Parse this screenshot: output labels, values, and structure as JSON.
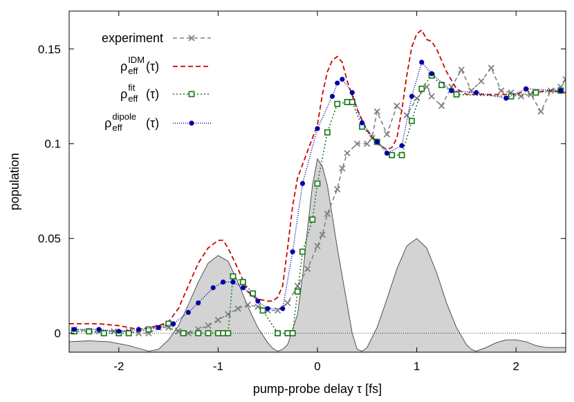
{
  "chart_data": {
    "type": "line",
    "xlabel": "pump-probe delay τ [fs]",
    "ylabel": "population",
    "xlim": [
      -2.5,
      2.5
    ],
    "ylim": [
      -0.01,
      0.17
    ],
    "xticks": [
      -2,
      -1,
      0,
      1,
      2
    ],
    "yticks": [
      0,
      0.05,
      0.1,
      0.15
    ],
    "ytick_labels": [
      "0",
      "0.05",
      "0.1",
      "0.15"
    ],
    "grid": false,
    "zero_line": true,
    "legend_position": "top-left",
    "series": [
      {
        "name": "experiment",
        "legend_main": "experiment",
        "color": "#808080",
        "dash": "6,4",
        "marker": "x",
        "points": [
          [
            -2.45,
            0.002
          ],
          [
            -2.2,
            0.001
          ],
          [
            -2.05,
            0.001
          ],
          [
            -1.9,
            0.001
          ],
          [
            -1.8,
            0.0
          ],
          [
            -1.7,
            0.0
          ],
          [
            -1.6,
            0.003
          ],
          [
            -1.5,
            0.003
          ],
          [
            -1.4,
            0.001
          ],
          [
            -1.3,
            0.0
          ],
          [
            -1.2,
            0.002
          ],
          [
            -1.1,
            0.004
          ],
          [
            -1.0,
            0.007
          ],
          [
            -0.9,
            0.01
          ],
          [
            -0.8,
            0.013
          ],
          [
            -0.7,
            0.015
          ],
          [
            -0.6,
            0.014
          ],
          [
            -0.5,
            0.012
          ],
          [
            -0.4,
            0.012
          ],
          [
            -0.3,
            0.016
          ],
          [
            -0.2,
            0.025
          ],
          [
            -0.1,
            0.034
          ],
          [
            0.0,
            0.046
          ],
          [
            0.05,
            0.052
          ],
          [
            0.1,
            0.063
          ],
          [
            0.2,
            0.076
          ],
          [
            0.25,
            0.087
          ],
          [
            0.3,
            0.095
          ],
          [
            0.4,
            0.1
          ],
          [
            0.5,
            0.1
          ],
          [
            0.55,
            0.103
          ],
          [
            0.6,
            0.117
          ],
          [
            0.7,
            0.105
          ],
          [
            0.8,
            0.12
          ],
          [
            0.9,
            0.115
          ],
          [
            1.0,
            0.124
          ],
          [
            1.1,
            0.13
          ],
          [
            1.15,
            0.125
          ],
          [
            1.25,
            0.12
          ],
          [
            1.35,
            0.13
          ],
          [
            1.45,
            0.139
          ],
          [
            1.55,
            0.128
          ],
          [
            1.65,
            0.133
          ],
          [
            1.75,
            0.14
          ],
          [
            1.85,
            0.128
          ],
          [
            1.95,
            0.127
          ],
          [
            2.05,
            0.125
          ],
          [
            2.15,
            0.126
          ],
          [
            2.25,
            0.117
          ],
          [
            2.35,
            0.128
          ],
          [
            2.45,
            0.13
          ],
          [
            2.5,
            0.134
          ]
        ]
      },
      {
        "name": "rho_eff^IDM(tau)",
        "legend_main": "ρ",
        "legend_sup": "IDM",
        "legend_sub": "eff",
        "legend_arg": "(τ)",
        "color": "#cc0000",
        "dash": "7,4",
        "marker": "none",
        "points": [
          [
            -2.5,
            0.005
          ],
          [
            -2.2,
            0.005
          ],
          [
            -2.0,
            0.004
          ],
          [
            -1.9,
            0.003
          ],
          [
            -1.8,
            0.002
          ],
          [
            -1.7,
            0.003
          ],
          [
            -1.6,
            0.004
          ],
          [
            -1.5,
            0.006
          ],
          [
            -1.4,
            0.013
          ],
          [
            -1.3,
            0.025
          ],
          [
            -1.2,
            0.037
          ],
          [
            -1.1,
            0.045
          ],
          [
            -1.0,
            0.049
          ],
          [
            -0.95,
            0.049
          ],
          [
            -0.9,
            0.045
          ],
          [
            -0.8,
            0.034
          ],
          [
            -0.7,
            0.022
          ],
          [
            -0.6,
            0.018
          ],
          [
            -0.5,
            0.017
          ],
          [
            -0.45,
            0.017
          ],
          [
            -0.4,
            0.019
          ],
          [
            -0.35,
            0.025
          ],
          [
            -0.3,
            0.045
          ],
          [
            -0.25,
            0.067
          ],
          [
            -0.2,
            0.082
          ],
          [
            -0.1,
            0.096
          ],
          [
            0.0,
            0.11
          ],
          [
            0.05,
            0.126
          ],
          [
            0.1,
            0.138
          ],
          [
            0.15,
            0.144
          ],
          [
            0.2,
            0.146
          ],
          [
            0.25,
            0.143
          ],
          [
            0.3,
            0.133
          ],
          [
            0.4,
            0.118
          ],
          [
            0.5,
            0.107
          ],
          [
            0.6,
            0.1
          ],
          [
            0.7,
            0.097
          ],
          [
            0.75,
            0.098
          ],
          [
            0.8,
            0.103
          ],
          [
            0.85,
            0.118
          ],
          [
            0.9,
            0.136
          ],
          [
            0.95,
            0.151
          ],
          [
            1.0,
            0.158
          ],
          [
            1.05,
            0.16
          ],
          [
            1.1,
            0.155
          ],
          [
            1.15,
            0.154
          ],
          [
            1.2,
            0.15
          ],
          [
            1.3,
            0.138
          ],
          [
            1.4,
            0.129
          ],
          [
            1.5,
            0.126
          ],
          [
            1.6,
            0.126
          ],
          [
            1.8,
            0.126
          ],
          [
            2.0,
            0.126
          ],
          [
            2.1,
            0.128
          ],
          [
            2.2,
            0.127
          ],
          [
            2.3,
            0.128
          ],
          [
            2.5,
            0.127
          ]
        ]
      },
      {
        "name": "rho_eff^fit(tau)",
        "legend_main": "ρ",
        "legend_sup": "fit",
        "legend_sub": "eff",
        "legend_arg": "(τ)",
        "color": "#1a7a1a",
        "dash": "2,3",
        "marker": "square",
        "points": [
          [
            -2.45,
            0.001
          ],
          [
            -2.3,
            0.001
          ],
          [
            -2.15,
            0.0
          ],
          [
            -2.0,
            0.0
          ],
          [
            -1.9,
            0.0
          ],
          [
            -1.7,
            0.002
          ],
          [
            -1.5,
            0.005
          ],
          [
            -1.35,
            0.0
          ],
          [
            -1.2,
            0.0
          ],
          [
            -1.1,
            0.0
          ],
          [
            -1.0,
            0.0
          ],
          [
            -0.95,
            0.0
          ],
          [
            -0.9,
            0.0
          ],
          [
            -0.85,
            0.03
          ],
          [
            -0.75,
            0.027
          ],
          [
            -0.65,
            0.021
          ],
          [
            -0.55,
            0.012
          ],
          [
            -0.4,
            0.0
          ],
          [
            -0.3,
            0.0
          ],
          [
            -0.25,
            0.0
          ],
          [
            -0.2,
            0.022
          ],
          [
            -0.15,
            0.043
          ],
          [
            -0.05,
            0.06
          ],
          [
            0.0,
            0.079
          ],
          [
            0.1,
            0.106
          ],
          [
            0.2,
            0.121
          ],
          [
            0.3,
            0.122
          ],
          [
            0.35,
            0.122
          ],
          [
            0.45,
            0.109
          ],
          [
            0.6,
            0.101
          ],
          [
            0.75,
            0.094
          ],
          [
            0.85,
            0.094
          ],
          [
            0.95,
            0.112
          ],
          [
            1.05,
            0.129
          ],
          [
            1.15,
            0.136
          ],
          [
            1.25,
            0.131
          ],
          [
            1.4,
            0.126
          ],
          [
            1.95,
            0.125
          ],
          [
            2.2,
            0.127
          ],
          [
            2.45,
            0.128
          ]
        ]
      },
      {
        "name": "rho_eff^dipole(tau)",
        "legend_main": "ρ",
        "legend_sup": "dipole",
        "legend_sub": "eff",
        "legend_arg": "(τ)",
        "color": "#0000aa",
        "dash": "1,2",
        "marker": "circle",
        "points": [
          [
            -2.45,
            0.002
          ],
          [
            -2.2,
            0.002
          ],
          [
            -2.0,
            0.001
          ],
          [
            -1.8,
            0.002
          ],
          [
            -1.6,
            0.003
          ],
          [
            -1.45,
            0.005
          ],
          [
            -1.3,
            0.011
          ],
          [
            -1.2,
            0.016
          ],
          [
            -1.05,
            0.024
          ],
          [
            -0.95,
            0.027
          ],
          [
            -0.85,
            0.027
          ],
          [
            -0.75,
            0.024
          ],
          [
            -0.6,
            0.017
          ],
          [
            -0.5,
            0.013
          ],
          [
            -0.35,
            0.013
          ],
          [
            -0.25,
            0.043
          ],
          [
            -0.15,
            0.079
          ],
          [
            0.0,
            0.108
          ],
          [
            0.15,
            0.125
          ],
          [
            0.2,
            0.132
          ],
          [
            0.25,
            0.134
          ],
          [
            0.35,
            0.127
          ],
          [
            0.45,
            0.111
          ],
          [
            0.6,
            0.101
          ],
          [
            0.7,
            0.095
          ],
          [
            0.85,
            0.099
          ],
          [
            0.95,
            0.125
          ],
          [
            1.05,
            0.143
          ],
          [
            1.15,
            0.137
          ],
          [
            1.35,
            0.128
          ],
          [
            1.6,
            0.127
          ],
          [
            1.9,
            0.124
          ],
          [
            2.1,
            0.129
          ],
          [
            2.45,
            0.128
          ]
        ]
      },
      {
        "name": "pulse_envelope",
        "role": "filled_area",
        "color": "#d3d3d3",
        "stroke": "#404040",
        "points": [
          [
            -2.5,
            -0.0045
          ],
          [
            -2.3,
            -0.004
          ],
          [
            -2.1,
            -0.0045
          ],
          [
            -1.9,
            -0.0065
          ],
          [
            -1.8,
            -0.008
          ],
          [
            -1.7,
            -0.0095
          ],
          [
            -1.6,
            -0.0085
          ],
          [
            -1.5,
            -0.0035
          ],
          [
            -1.4,
            0.004
          ],
          [
            -1.3,
            0.015
          ],
          [
            -1.2,
            0.027
          ],
          [
            -1.1,
            0.037
          ],
          [
            -1.0,
            0.041
          ],
          [
            -0.9,
            0.038
          ],
          [
            -0.8,
            0.027
          ],
          [
            -0.7,
            0.014
          ],
          [
            -0.6,
            0.003
          ],
          [
            -0.5,
            -0.005
          ],
          [
            -0.45,
            -0.008
          ],
          [
            -0.4,
            -0.0095
          ],
          [
            -0.35,
            -0.0085
          ],
          [
            -0.3,
            -0.006
          ],
          [
            -0.2,
            0.01
          ],
          [
            -0.15,
            0.03
          ],
          [
            -0.1,
            0.055
          ],
          [
            -0.05,
            0.078
          ],
          [
            0.0,
            0.092
          ],
          [
            0.05,
            0.088
          ],
          [
            0.1,
            0.078
          ],
          [
            0.15,
            0.062
          ],
          [
            0.2,
            0.045
          ],
          [
            0.3,
            0.015
          ],
          [
            0.35,
            0.0
          ],
          [
            0.4,
            -0.0085
          ],
          [
            0.45,
            -0.0095
          ],
          [
            0.5,
            -0.0075
          ],
          [
            0.6,
            0.003
          ],
          [
            0.7,
            0.018
          ],
          [
            0.8,
            0.034
          ],
          [
            0.9,
            0.046
          ],
          [
            1.0,
            0.05
          ],
          [
            1.1,
            0.045
          ],
          [
            1.2,
            0.032
          ],
          [
            1.3,
            0.016
          ],
          [
            1.4,
            0.003
          ],
          [
            1.5,
            -0.006
          ],
          [
            1.55,
            -0.0085
          ],
          [
            1.6,
            -0.0095
          ],
          [
            1.7,
            -0.0075
          ],
          [
            1.8,
            -0.005
          ],
          [
            1.9,
            -0.0035
          ],
          [
            2.0,
            -0.0035
          ],
          [
            2.1,
            -0.0045
          ],
          [
            2.2,
            -0.0065
          ],
          [
            2.3,
            -0.0075
          ],
          [
            2.4,
            -0.0075
          ],
          [
            2.5,
            -0.0075
          ]
        ]
      }
    ]
  }
}
